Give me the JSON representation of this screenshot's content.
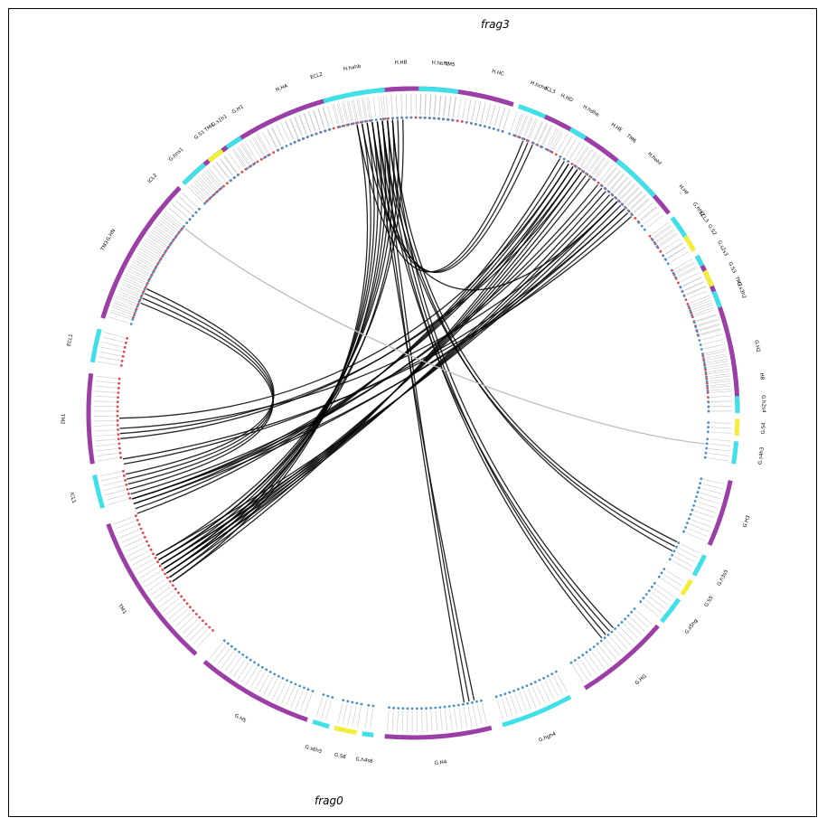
{
  "figure": {
    "fragments": [
      {
        "name": "frag3",
        "residue_color": "#e0474c"
      },
      {
        "name": "frag0",
        "residue_color": "#4a90c8"
      }
    ],
    "colors": {
      "helix": "#9b3fa6",
      "loop": "#3fe0e8",
      "strand": "#f2ee3a",
      "contact_strong": "#000000",
      "contact_weak": "#bdbdbd"
    },
    "frag3_segments": [
      {
        "label": "H8",
        "type": "helix"
      },
      {
        "label": "TM7",
        "type": "helix"
      },
      {
        "label": "ECL3",
        "type": "loop"
      },
      {
        "label": "TM6",
        "type": "helix"
      },
      {
        "label": "ICL3",
        "type": "loop"
      },
      {
        "label": "TM5",
        "type": "helix"
      },
      {
        "label": "ECL2",
        "type": "loop"
      },
      {
        "label": "TM4",
        "type": "helix"
      },
      {
        "label": "ICL2",
        "type": "loop"
      },
      {
        "label": "TM3",
        "type": "helix"
      },
      {
        "label": "ECL1",
        "type": "loop"
      },
      {
        "label": "TM2",
        "type": "helix"
      },
      {
        "label": "ICL1",
        "type": "loop"
      },
      {
        "label": "TM1",
        "type": "helix"
      }
    ],
    "frag0_segments": [
      {
        "label": "G.H5",
        "type": "helix"
      },
      {
        "label": "G.s6h5",
        "type": "loop"
      },
      {
        "label": "G.S6",
        "type": "strand"
      },
      {
        "label": "G.h4s6",
        "type": "loop"
      },
      {
        "label": "G.H4",
        "type": "helix"
      },
      {
        "label": "G.hgh4",
        "type": "loop"
      },
      {
        "label": "G.HG",
        "type": "helix"
      },
      {
        "label": "G.s5hg",
        "type": "loop"
      },
      {
        "label": "G.S5",
        "type": "strand"
      },
      {
        "label": "G.h3s5",
        "type": "loop"
      },
      {
        "label": "G.H3",
        "type": "helix"
      },
      {
        "label": "G.s4h3",
        "type": "loop"
      },
      {
        "label": "G.S4",
        "type": "strand"
      },
      {
        "label": "G.h2s4",
        "type": "loop"
      },
      {
        "label": "G.H2",
        "type": "helix"
      },
      {
        "label": "G.s3h2",
        "type": "loop"
      },
      {
        "label": "G.S3",
        "type": "strand"
      },
      {
        "label": "G.s2s3",
        "type": "loop"
      },
      {
        "label": "G.S2",
        "type": "strand"
      },
      {
        "label": "G.hfs2",
        "type": "loop"
      },
      {
        "label": "H.HF",
        "type": "helix"
      },
      {
        "label": "H.hehf",
        "type": "loop"
      },
      {
        "label": "H.HE",
        "type": "helix"
      },
      {
        "label": "H.hdhe",
        "type": "loop"
      },
      {
        "label": "H.HD",
        "type": "helix"
      },
      {
        "label": "H.hchd",
        "type": "loop"
      },
      {
        "label": "H.HC",
        "type": "helix"
      },
      {
        "label": "H.hbhc",
        "type": "loop"
      },
      {
        "label": "H.HB",
        "type": "helix"
      },
      {
        "label": "H.hahb",
        "type": "loop"
      },
      {
        "label": "H.HA",
        "type": "helix"
      },
      {
        "label": "G.H1",
        "type": "helix"
      },
      {
        "label": "G.s1h1",
        "type": "loop"
      },
      {
        "label": "G.S1",
        "type": "strand"
      },
      {
        "label": "G.hns1",
        "type": "loop"
      },
      {
        "label": "G.HN",
        "type": "helix"
      }
    ]
  }
}
